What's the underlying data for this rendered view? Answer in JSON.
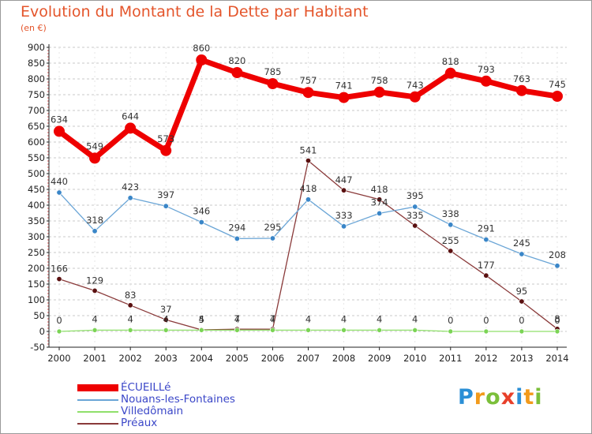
{
  "header": {
    "title": "Evolution du Montant de la Dette par Habitant",
    "subtitle": "(en €)"
  },
  "logo": {
    "letters": [
      "P",
      "r",
      "o",
      "x",
      "i",
      "t",
      "i"
    ],
    "colors": [
      "#2b8fd6",
      "#f29a1b",
      "#7bbf3a",
      "#e8402a",
      "#2b8fd6",
      "#f29a1b",
      "#7bbf3a"
    ]
  },
  "chart_data": {
    "type": "line",
    "x": [
      2000,
      2001,
      2002,
      2003,
      2004,
      2005,
      2006,
      2007,
      2008,
      2009,
      2010,
      2011,
      2012,
      2013,
      2014
    ],
    "ylim": [
      -50,
      900
    ],
    "yticks": [
      -50,
      0,
      50,
      100,
      150,
      200,
      250,
      300,
      350,
      400,
      450,
      500,
      550,
      600,
      650,
      700,
      750,
      800,
      850,
      900
    ],
    "grid": "horizontal-dashed",
    "legend_position": "bottom-left",
    "series": [
      {
        "name": "ÉCUEILLé",
        "color": "#ee0000",
        "marker_color": "#ee0000",
        "values": [
          634,
          549,
          644,
          573,
          860,
          820,
          785,
          757,
          741,
          758,
          743,
          818,
          793,
          763,
          745
        ]
      },
      {
        "name": "Nouans-les-Fontaines",
        "color": "#6aa5d6",
        "marker_color": "#3a86c8",
        "values": [
          440,
          318,
          423,
          397,
          346,
          294,
          295,
          418,
          333,
          374,
          395,
          338,
          291,
          245,
          208
        ]
      },
      {
        "name": "Villedômain",
        "color": "#8fe06a",
        "marker_color": "#7bd455",
        "values": [
          0,
          4,
          4,
          4,
          4,
          4,
          4,
          4,
          4,
          4,
          4,
          0,
          0,
          0,
          0
        ]
      },
      {
        "name": "Préaux",
        "color": "#8a3a3a",
        "marker_color": "#5a1010",
        "values": [
          166,
          129,
          83,
          37,
          5,
          7,
          7,
          541,
          447,
          418,
          335,
          255,
          177,
          95,
          8
        ]
      }
    ]
  }
}
